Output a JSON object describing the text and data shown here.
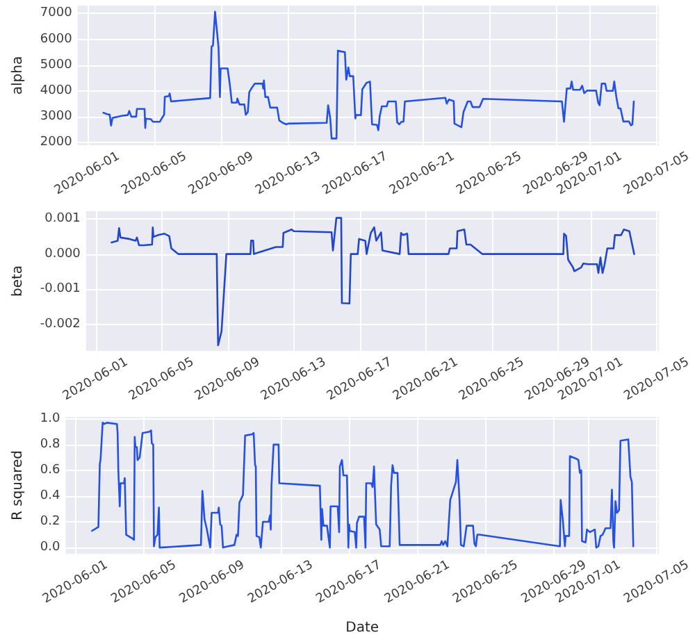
{
  "chart_data": [
    {
      "type": "line",
      "ylabel": "alpha",
      "color": "#2451e3",
      "grid": true,
      "xlim": [
        "2020-05-31T10:00",
        "2020-07-05T03:00"
      ],
      "xticks": [
        "2020-06-01",
        "2020-06-05",
        "2020-06-09",
        "2020-06-13",
        "2020-06-17",
        "2020-06-21",
        "2020-06-25",
        "2020-06-29",
        "2020-07-01",
        "2020-07-05"
      ],
      "ylim": [
        1890,
        7310
      ],
      "yticks": [
        2000,
        3000,
        4000,
        5000,
        6000,
        7000
      ],
      "x": [
        "2020-06-01T23:00",
        "2020-06-02T06:00",
        "2020-06-02T08:00",
        "2020-06-02T10:00",
        "2020-06-02T12:00",
        "2020-06-03T01:00",
        "2020-06-03T10:00",
        "2020-06-03T12:00",
        "2020-06-03T15:00",
        "2020-06-03T22:00",
        "2020-06-03T23:00",
        "2020-06-04T10:00",
        "2020-06-04T11:00",
        "2020-06-04T12:00",
        "2020-06-04T19:00",
        "2020-06-04T22:00",
        "2020-06-05T08:00",
        "2020-06-05T11:00",
        "2020-06-05T14:00",
        "2020-06-05T15:00",
        "2020-06-05T21:00",
        "2020-06-05T22:00",
        "2020-06-06T00:00",
        "2020-06-08T08:00",
        "2020-06-08T10:00",
        "2020-06-08T12:00",
        "2020-06-08T15:00",
        "2020-06-08T20:00",
        "2020-06-08T22:00",
        "2020-06-08T23:00",
        "2020-06-09T09:00",
        "2020-06-09T12:00",
        "2020-06-09T15:00",
        "2020-06-09T22:00",
        "2020-06-09T23:00",
        "2020-06-10T02:00",
        "2020-06-10T09:00",
        "2020-06-10T11:00",
        "2020-06-10T14:00",
        "2020-06-10T16:00",
        "2020-06-10T20:00",
        "2020-06-11T00:00",
        "2020-06-11T11:00",
        "2020-06-11T12:00",
        "2020-06-11T13:00",
        "2020-06-11T15:00",
        "2020-06-11T19:00",
        "2020-06-11T22:00",
        "2020-06-12T08:00",
        "2020-06-12T11:00",
        "2020-06-12T16:00",
        "2020-06-12T21:00",
        "2020-06-13T00:00",
        "2020-06-15T07:00",
        "2020-06-15T09:00",
        "2020-06-15T12:00",
        "2020-06-15T14:00",
        "2020-06-15T21:00",
        "2020-06-15T23:00",
        "2020-06-16T09:00",
        "2020-06-16T11:00",
        "2020-06-16T14:00",
        "2020-06-16T16:00",
        "2020-06-16T21:00",
        "2020-06-17T00:00",
        "2020-06-17T01:00",
        "2020-06-17T08:00",
        "2020-06-17T10:00",
        "2020-06-17T16:00",
        "2020-06-17T21:00",
        "2020-06-18T00:00",
        "2020-06-18T07:00",
        "2020-06-18T09:00",
        "2020-06-18T11:00",
        "2020-06-18T14:00",
        "2020-06-18T21:00",
        "2020-06-18T23:00",
        "2020-06-19T10:00",
        "2020-06-19T12:00",
        "2020-06-19T15:00",
        "2020-06-19T18:00",
        "2020-06-19T21:00",
        "2020-06-19T23:00",
        "2020-06-22T09:00",
        "2020-06-22T11:00",
        "2020-06-22T14:00",
        "2020-06-22T21:00",
        "2020-06-22T22:00",
        "2020-06-23T08:00",
        "2020-06-23T11:00",
        "2020-06-23T17:00",
        "2020-06-23T21:00",
        "2020-06-24T00:00",
        "2020-06-24T10:00",
        "2020-06-24T15:00",
        "2020-06-29T08:00",
        "2020-06-29T11:00",
        "2020-06-29T15:00",
        "2020-06-29T20:00",
        "2020-06-29T22:00",
        "2020-06-30T00:00",
        "2020-06-30T10:00",
        "2020-06-30T13:00",
        "2020-06-30T16:00",
        "2020-06-30T20:00",
        "2020-07-01T09:00",
        "2020-07-01T12:00",
        "2020-07-01T14:00",
        "2020-07-01T17:00",
        "2020-07-01T22:00",
        "2020-07-02T00:00",
        "2020-07-02T09:00",
        "2020-07-02T11:00",
        "2020-07-02T14:00",
        "2020-07-02T17:00",
        "2020-07-02T20:00",
        "2020-07-03T00:00",
        "2020-07-03T08:00",
        "2020-07-03T11:00",
        "2020-07-03T13:00",
        "2020-07-03T15:00"
      ],
      "values": [
        3150,
        3080,
        3080,
        2650,
        2950,
        3030,
        3060,
        3220,
        3000,
        3000,
        3300,
        3300,
        2560,
        2920,
        2900,
        2800,
        2800,
        2950,
        3070,
        3770,
        3800,
        3900,
        3590,
        3720,
        5720,
        5750,
        7070,
        5680,
        3760,
        4870,
        4870,
        4280,
        3540,
        3540,
        3700,
        3470,
        3470,
        3070,
        3180,
        3950,
        4130,
        4280,
        4280,
        4090,
        4400,
        3760,
        3760,
        3350,
        3350,
        2850,
        2760,
        2700,
        2730,
        2760,
        3440,
        2950,
        2150,
        2150,
        5560,
        5500,
        4430,
        4910,
        4570,
        4570,
        2930,
        3060,
        3060,
        4060,
        4310,
        4360,
        2700,
        2680,
        2470,
        3030,
        3400,
        3400,
        3590,
        3590,
        2780,
        2700,
        2800,
        2800,
        3590,
        3730,
        3500,
        3660,
        3600,
        2730,
        2590,
        3180,
        3590,
        3590,
        3370,
        3370,
        3690,
        3590,
        2800,
        4090,
        4090,
        4360,
        4040,
        4040,
        4200,
        3910,
        4010,
        4010,
        3540,
        3440,
        4280,
        4280,
        4000,
        4000,
        4360,
        3760,
        3320,
        3320,
        2810,
        2810,
        2660,
        2700,
        3590
      ]
    },
    {
      "type": "line",
      "ylabel": "beta",
      "color": "#2246c8",
      "grid": true,
      "xlim": [
        "2020-05-31T10:00",
        "2020-07-05T03:00"
      ],
      "xticks": [
        "2020-06-01",
        "2020-06-05",
        "2020-06-09",
        "2020-06-13",
        "2020-06-17",
        "2020-06-21",
        "2020-06-25",
        "2020-06-29",
        "2020-07-01",
        "2020-07-05"
      ],
      "ylim": [
        -0.00276,
        0.00122
      ],
      "yticks": [
        {
          "value": -0.002,
          "label": "-0.002"
        },
        {
          "value": -0.001,
          "label": "-0.001"
        },
        {
          "value": 0,
          "label": "0.000"
        },
        {
          "value": 0.001,
          "label": "0.001"
        }
      ],
      "x": [
        "2020-06-01T23:00",
        "2020-06-02T08:00",
        "2020-06-02T10:00",
        "2020-06-02T12:00",
        "2020-06-03T01:00",
        "2020-06-03T10:00",
        "2020-06-03T12:00",
        "2020-06-03T15:00",
        "2020-06-03T22:00",
        "2020-06-04T10:00",
        "2020-06-04T11:00",
        "2020-06-04T12:00",
        "2020-06-04T19:00",
        "2020-06-05T04:00",
        "2020-06-05T11:00",
        "2020-06-05T14:00",
        "2020-06-06T00:00",
        "2020-06-08T08:00",
        "2020-06-08T10:00",
        "2020-06-08T15:00",
        "2020-06-08T22:00",
        "2020-06-10T09:00",
        "2020-06-10T10:00",
        "2020-06-10T13:00",
        "2020-06-10T14:00",
        "2020-06-11T22:00",
        "2020-06-12T08:00",
        "2020-06-12T09:00",
        "2020-06-12T21:00",
        "2020-06-13T00:00",
        "2020-06-15T07:00",
        "2020-06-15T09:00",
        "2020-06-15T14:00",
        "2020-06-15T21:00",
        "2020-06-15T22:00",
        "2020-06-16T09:00",
        "2020-06-16T11:00",
        "2020-06-16T21:00",
        "2020-06-16T23:00",
        "2020-06-17T08:00",
        "2020-06-17T10:00",
        "2020-06-17T16:00",
        "2020-06-17T21:00",
        "2020-06-18T00:00",
        "2020-06-18T07:00",
        "2020-06-18T09:00",
        "2020-06-19T10:00",
        "2020-06-19T12:00",
        "2020-06-19T15:00",
        "2020-06-19T21:00",
        "2020-06-19T23:00",
        "2020-06-22T09:00",
        "2020-06-22T11:00",
        "2020-06-22T21:00",
        "2020-06-22T22:00",
        "2020-06-23T08:00",
        "2020-06-23T11:00",
        "2020-06-23T17:00",
        "2020-06-24T00:00",
        "2020-06-24T10:00",
        "2020-06-24T15:00",
        "2020-06-29T08:00",
        "2020-06-29T09:00",
        "2020-06-29T12:00",
        "2020-06-29T15:00",
        "2020-06-29T22:00",
        "2020-06-30T00:00",
        "2020-06-30T10:00",
        "2020-06-30T13:00",
        "2020-06-30T20:00",
        "2020-07-01T09:00",
        "2020-07-01T11:00",
        "2020-07-01T14:00",
        "2020-07-01T17:00",
        "2020-07-01T20:00",
        "2020-07-02T00:00",
        "2020-07-02T09:00",
        "2020-07-02T11:00",
        "2020-07-02T20:00",
        "2020-07-03T00:00",
        "2020-07-03T08:00",
        "2020-07-03T15:00"
      ],
      "values": [
        0.00033,
        0.00038,
        0.00074,
        0.00047,
        0.00043,
        0.00038,
        0.00047,
        0.00025,
        0.00025,
        0.00027,
        0.00076,
        0.00049,
        0.00054,
        0.00058,
        0.00051,
        0.00016,
        0,
        0,
        -0.0026,
        -0.0022,
        0,
        0,
        0.00038,
        0.00038,
        0,
        0.0002,
        0.0002,
        0.0006,
        0.0007,
        0.00065,
        0.00062,
        0.0001,
        0.00103,
        0.00103,
        -0.0014,
        -0.00141,
        0,
        0,
        0.00043,
        0.00038,
        0,
        0.0006,
        0.00076,
        0.00038,
        0.00062,
        0.0001,
        0,
        0.0006,
        0.00054,
        0.00058,
        0,
        0,
        0.00016,
        0.00016,
        0.00065,
        0.0007,
        0.00027,
        0.00027,
        0.00016,
        0,
        0,
        0,
        0.00058,
        0.00052,
        -0.00016,
        -0.00038,
        -0.00049,
        -0.00038,
        -0.00027,
        -0.00029,
        -0.00029,
        -0.00054,
        -0.0001,
        -0.00054,
        -0.0003,
        0.00016,
        0.00016,
        0.00054,
        0.00054,
        0.0007,
        0.00065,
        0
      ]
    },
    {
      "type": "line",
      "ylabel": "R squared",
      "xlabel": "Date",
      "color": "#2451e3",
      "grid": true,
      "xlim": [
        "2020-05-31T10:00",
        "2020-07-05T03:00"
      ],
      "xticks": [
        "2020-06-01",
        "2020-06-05",
        "2020-06-09",
        "2020-06-13",
        "2020-06-17",
        "2020-06-21",
        "2020-06-25",
        "2020-06-29",
        "2020-07-01",
        "2020-07-05"
      ],
      "ylim": [
        -0.048,
        1.015
      ],
      "yticks": [
        {
          "value": 0,
          "label": "0.0"
        },
        0.2,
        0.4,
        0.6,
        0.8,
        {
          "value": 1,
          "label": "1.0"
        }
      ],
      "x": [
        "2020-06-01T23:00",
        "2020-06-02T08:00",
        "2020-06-02T10:00",
        "2020-06-02T11:00",
        "2020-06-02T14:00",
        "2020-06-02T16:00",
        "2020-06-02T20:00",
        "2020-06-03T10:00",
        "2020-06-03T11:00",
        "2020-06-03T12:00",
        "2020-06-03T14:00",
        "2020-06-03T15:00",
        "2020-06-03T20:00",
        "2020-06-03T21:00",
        "2020-06-03T23:00",
        "2020-06-04T08:00",
        "2020-06-04T10:00",
        "2020-06-04T11:00",
        "2020-06-04T12:00",
        "2020-06-04T14:00",
        "2020-06-04T15:00",
        "2020-06-04T18:00",
        "2020-06-04T22:00",
        "2020-06-05T08:00",
        "2020-06-05T10:00",
        "2020-06-05T11:00",
        "2020-06-05T13:00",
        "2020-06-05T14:00",
        "2020-06-05T16:00",
        "2020-06-05T19:00",
        "2020-06-05T21:00",
        "2020-06-05T22:00",
        "2020-06-08T08:00",
        "2020-06-08T10:00",
        "2020-06-08T13:00",
        "2020-06-08T16:00",
        "2020-06-08T21:00",
        "2020-06-08T23:00",
        "2020-06-09T08:00",
        "2020-06-09T09:00",
        "2020-06-09T11:00",
        "2020-06-09T13:00",
        "2020-06-09T15:00",
        "2020-06-09T22:00",
        "2020-06-10T07:00",
        "2020-06-10T10:00",
        "2020-06-10T12:00",
        "2020-06-10T14:00",
        "2020-06-10T19:00",
        "2020-06-10T22:00",
        "2020-06-11T08:00",
        "2020-06-11T10:00",
        "2020-06-11T12:00",
        "2020-06-11T13:00",
        "2020-06-11T14:00",
        "2020-06-11T18:00",
        "2020-06-11T20:00",
        "2020-06-11T23:00",
        "2020-06-12T07:00",
        "2020-06-12T09:00",
        "2020-06-12T10:00",
        "2020-06-12T11:00",
        "2020-06-12T14:00",
        "2020-06-12T21:00",
        "2020-06-12T22:00",
        "2020-06-15T07:00",
        "2020-06-15T09:00",
        "2020-06-15T10:00",
        "2020-06-15T12:00",
        "2020-06-15T17:00",
        "2020-06-15T21:00",
        "2020-06-15T22:00",
        "2020-06-16T08:00",
        "2020-06-16T10:00",
        "2020-06-16T11:00",
        "2020-06-16T14:00",
        "2020-06-16T16:00",
        "2020-06-16T21:00",
        "2020-06-16T23:00",
        "2020-06-17T00:00",
        "2020-06-17T01:00",
        "2020-06-17T08:00",
        "2020-06-17T10:00",
        "2020-06-17T11:00",
        "2020-06-17T14:00",
        "2020-06-17T21:00",
        "2020-06-17T23:00",
        "2020-06-18T00:00",
        "2020-06-18T07:00",
        "2020-06-18T09:00",
        "2020-06-18T11:00",
        "2020-06-18T12:00",
        "2020-06-18T14:00",
        "2020-06-18T19:00",
        "2020-06-18T21:00",
        "2020-06-19T09:00",
        "2020-06-19T11:00",
        "2020-06-19T13:00",
        "2020-06-19T15:00",
        "2020-06-19T20:00",
        "2020-06-19T23:00",
        "2020-06-22T08:00",
        "2020-06-22T10:00",
        "2020-06-22T12:00",
        "2020-06-22T15:00",
        "2020-06-22T18:00",
        "2020-06-22T22:00",
        "2020-06-23T06:00",
        "2020-06-23T08:00",
        "2020-06-23T11:00",
        "2020-06-23T13:00",
        "2020-06-23T17:00",
        "2020-06-23T21:00",
        "2020-06-24T06:00",
        "2020-06-24T08:00",
        "2020-06-24T10:00",
        "2020-06-24T12:00",
        "2020-06-24T15:00",
        "2020-06-29T08:00",
        "2020-06-29T09:00",
        "2020-06-29T12:00",
        "2020-06-29T15:00",
        "2020-06-29T16:00",
        "2020-06-29T21:00",
        "2020-06-29T22:00",
        "2020-06-30T07:00",
        "2020-06-30T10:00",
        "2020-06-30T12:00",
        "2020-06-30T14:00",
        "2020-06-30T15:00",
        "2020-06-30T20:00",
        "2020-06-30T22:00",
        "2020-07-01T02:00",
        "2020-07-01T09:00",
        "2020-07-01T11:00",
        "2020-07-01T14:00",
        "2020-07-01T17:00",
        "2020-07-01T20:00",
        "2020-07-02T00:00",
        "2020-07-02T07:00",
        "2020-07-02T09:00",
        "2020-07-02T11:00",
        "2020-07-02T12:00",
        "2020-07-02T14:00",
        "2020-07-02T16:00",
        "2020-07-02T19:00",
        "2020-07-02T21:00",
        "2020-07-03T08:00",
        "2020-07-03T11:00",
        "2020-07-03T13:00",
        "2020-07-03T15:00"
      ],
      "values": [
        0.13,
        0.16,
        0.65,
        0.68,
        0.97,
        0.96,
        0.97,
        0.96,
        0.89,
        0.6,
        0.32,
        0.5,
        0.5,
        0.54,
        0.1,
        0.07,
        0.06,
        0.86,
        0.78,
        0.78,
        0.68,
        0.7,
        0.89,
        0.9,
        0.91,
        0.81,
        0.8,
        0.01,
        0.08,
        0.1,
        0.31,
        0,
        0.02,
        0.44,
        0.22,
        0.15,
        0,
        0.27,
        0.27,
        0.31,
        0.18,
        0.17,
        0,
        0.01,
        0.02,
        0.1,
        0.09,
        0.35,
        0.41,
        0.87,
        0.88,
        0.89,
        0.64,
        0.63,
        0.09,
        0.08,
        0,
        0.2,
        0.2,
        0.25,
        0.14,
        0.48,
        0.8,
        0.8,
        0.5,
        0.48,
        0.06,
        0.3,
        0.17,
        0.17,
        0,
        0.32,
        0.32,
        0.12,
        0.63,
        0.68,
        0.56,
        0.56,
        0,
        0.18,
        0.13,
        0.12,
        0,
        0.19,
        0.24,
        0.24,
        0,
        0.5,
        0.5,
        0.47,
        0.63,
        0.47,
        0.18,
        0.14,
        0.01,
        0.01,
        0.48,
        0.64,
        0.58,
        0.58,
        0.02,
        0.02,
        0.05,
        0.02,
        0.05,
        0.01,
        0.37,
        0.51,
        0.68,
        0.37,
        0.02,
        0.01,
        0.17,
        0.17,
        0.03,
        0.01,
        0.1,
        0.1,
        0.01,
        0.37,
        0.22,
        0.01,
        0.09,
        0.09,
        0.71,
        0.69,
        0.68,
        0.58,
        0.6,
        0.05,
        0.04,
        0.14,
        0.12,
        0.14,
        0,
        0.01,
        0.09,
        0.1,
        0.15,
        0.15,
        0.45,
        0.05,
        0,
        0.36,
        0.27,
        0.29,
        0.83,
        0.84,
        0.55,
        0.51,
        0.01
      ]
    }
  ]
}
